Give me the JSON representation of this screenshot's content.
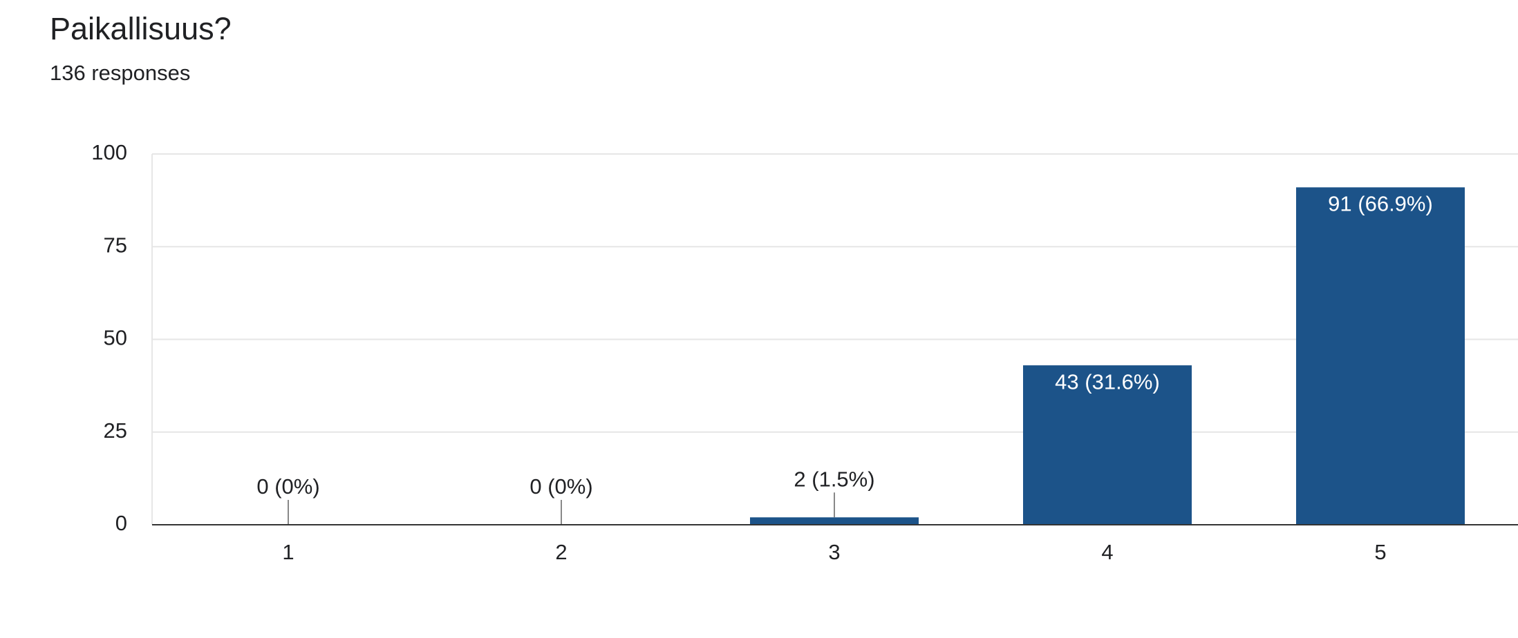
{
  "chart_data": {
    "type": "bar",
    "title": "Paikallisuus?",
    "subtitle": "136 responses",
    "categories": [
      "1",
      "2",
      "3",
      "4",
      "5"
    ],
    "values": [
      0,
      0,
      2,
      43,
      91
    ],
    "value_labels": [
      "0 (0%)",
      "0 (0%)",
      "2 (1.5%)",
      "43 (31.6%)",
      "91 (66.9%)"
    ],
    "color": "#1c5389",
    "ylim": [
      0,
      100
    ],
    "yticks": [
      0,
      25,
      50,
      75,
      100
    ],
    "grid": true
  }
}
